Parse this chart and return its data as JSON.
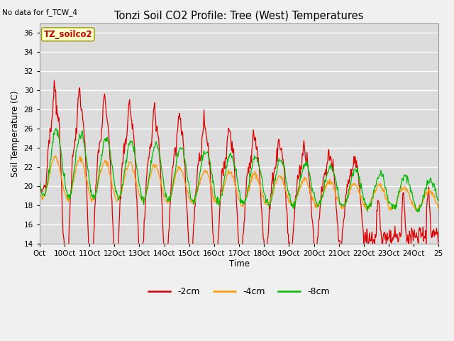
{
  "title": "Tonzi Soil CO2 Profile: Tree (West) Temperatures",
  "subtitle": "No data for f_TCW_4",
  "ylabel": "Soil Temperature (C)",
  "xlabel": "Time",
  "watermark": "TZ_soilco2",
  "ylim": [
    14,
    37
  ],
  "yticks": [
    14,
    16,
    18,
    20,
    22,
    24,
    26,
    28,
    30,
    32,
    34,
    36
  ],
  "xtick_labels": [
    "Oct",
    "10Oct",
    "11Oct",
    "12Oct",
    "13Oct",
    "14Oct",
    "15Oct",
    "16Oct",
    "17Oct",
    "18Oct",
    "19Oct",
    "20Oct",
    "21Oct",
    "22Oct",
    "23Oct",
    "24Oct",
    "25"
  ],
  "line_colors": {
    "m2cm": "#dd0000",
    "m4cm": "#ff9900",
    "m8cm": "#00bb00"
  },
  "background_color": "#e8e8e8",
  "plot_bg_color": "#dcdcdc",
  "n_days": 16,
  "pts_per_day": 48
}
